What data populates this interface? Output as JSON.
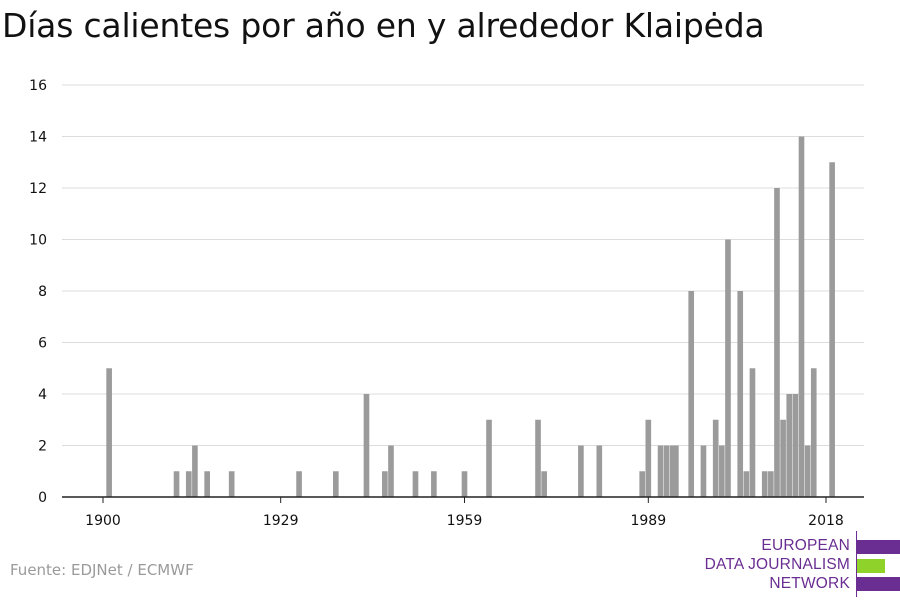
{
  "title": "Días calientes por año en y alrededor Klaipėda",
  "source": "Fuente: EDJNet / ECMWF",
  "logo": {
    "lines": [
      "EUROPEAN",
      "DATA JOURNALISM",
      "NETWORK"
    ],
    "purple": "#6a2d91",
    "green": "#8fd22a"
  },
  "chart_data": {
    "type": "bar",
    "title": "Días calientes por año en y alrededor Klaipėda",
    "xlabel": "",
    "ylabel": "",
    "ylim": [
      0,
      16
    ],
    "yticks": [
      0,
      2,
      4,
      6,
      8,
      10,
      12,
      14,
      16
    ],
    "xlim": [
      1899,
      2019
    ],
    "xticks": [
      1900,
      1929,
      1959,
      1989,
      2018
    ],
    "grid": true,
    "bar_color": "#9b9b9b",
    "x": [
      1901,
      1912,
      1914,
      1915,
      1917,
      1921,
      1932,
      1938,
      1943,
      1946,
      1947,
      1951,
      1954,
      1959,
      1963,
      1971,
      1972,
      1978,
      1981,
      1988,
      1989,
      1991,
      1992,
      1993,
      1993.5,
      1996,
      1998,
      2000,
      2001,
      2002,
      2004,
      2005,
      2006,
      2008,
      2009,
      2010,
      2011,
      2012,
      2013,
      2014,
      2015,
      2016,
      2019
    ],
    "values": [
      5,
      1,
      1,
      2,
      1,
      1,
      1,
      1,
      4,
      1,
      2,
      1,
      1,
      1,
      3,
      3,
      1,
      2,
      2,
      1,
      3,
      2,
      2,
      2,
      2,
      8,
      2,
      3,
      2,
      10,
      8,
      1,
      5,
      1,
      1,
      12,
      3,
      4,
      4,
      14,
      2,
      5,
      13
    ]
  }
}
